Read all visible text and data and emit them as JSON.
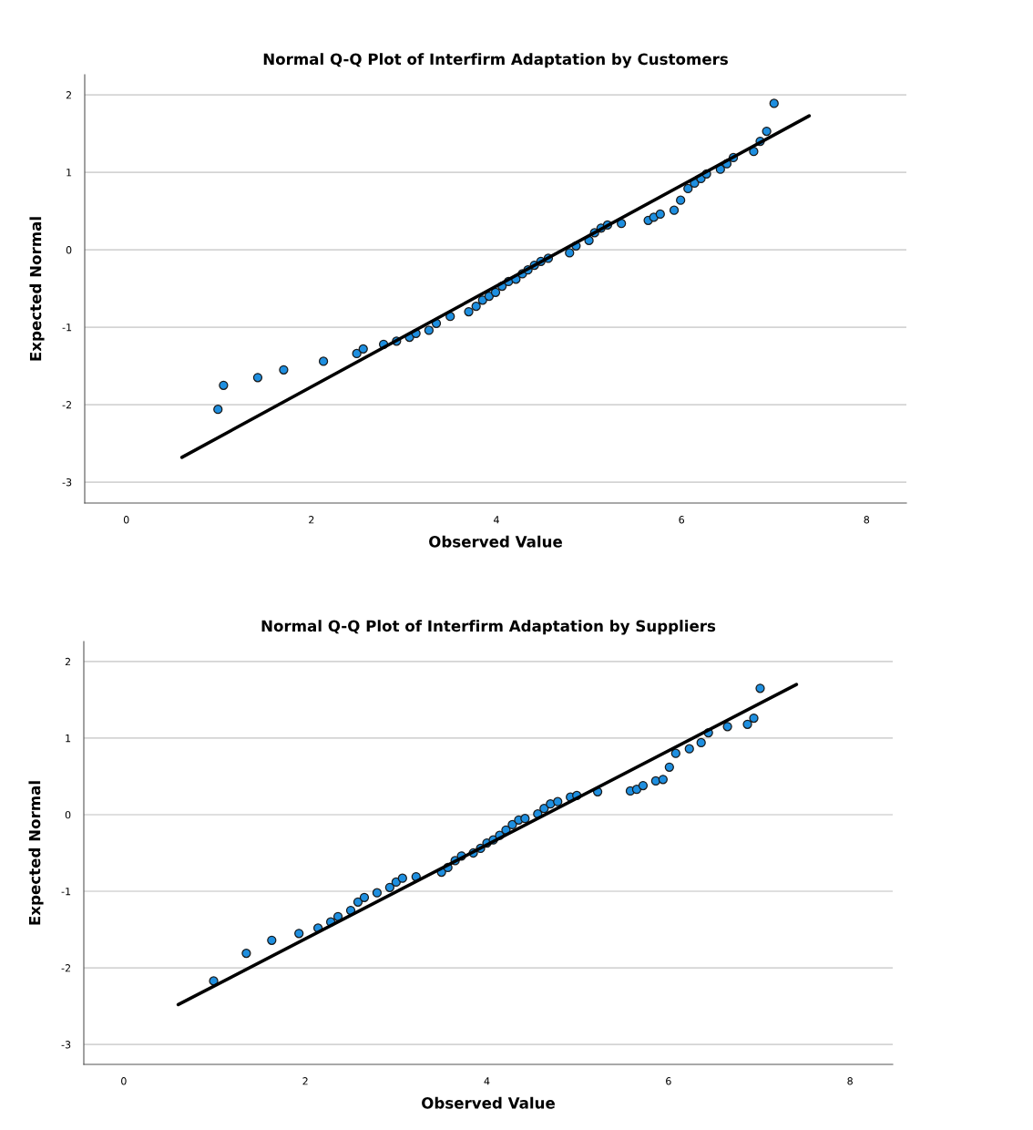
{
  "chart_data": [
    {
      "type": "scatter",
      "title": "Normal Q-Q Plot of Interfirm Adaptation by Customers",
      "xlabel": "Observed Value",
      "ylabel": "Expected Normal",
      "xlim": [
        -0.45,
        8.43
      ],
      "ylim": [
        -3.27,
        2.26
      ],
      "xticks": [
        0,
        2,
        4,
        6,
        8
      ],
      "yticks": [
        -3,
        -2,
        -1,
        0,
        1,
        2
      ],
      "grid": "y",
      "legend": false,
      "series": [
        {
          "marker": "circle",
          "color": "#1e8fe0",
          "x": [
            0.99,
            1.05,
            1.42,
            1.7,
            2.13,
            2.49,
            2.56,
            2.78,
            2.92,
            3.06,
            3.13,
            3.27,
            3.35,
            3.5,
            3.7,
            3.78,
            3.85,
            3.92,
            3.99,
            4.06,
            4.13,
            4.21,
            4.28,
            4.34,
            4.41,
            4.48,
            4.56,
            4.79,
            4.86,
            5.0,
            5.06,
            5.13,
            5.2,
            5.35,
            5.64,
            5.7,
            5.77,
            5.92,
            5.99,
            6.07,
            6.14,
            6.21,
            6.27,
            6.42,
            6.49,
            6.56,
            6.78,
            6.85,
            6.92,
            7.0
          ],
          "values": [
            -2.06,
            -1.75,
            -1.65,
            -1.55,
            -1.44,
            -1.34,
            -1.28,
            -1.22,
            -1.18,
            -1.13,
            -1.08,
            -1.04,
            -0.95,
            -0.86,
            -0.8,
            -0.73,
            -0.65,
            -0.6,
            -0.55,
            -0.47,
            -0.41,
            -0.38,
            -0.31,
            -0.26,
            -0.2,
            -0.15,
            -0.11,
            -0.04,
            0.05,
            0.12,
            0.22,
            0.28,
            0.32,
            0.34,
            0.38,
            0.42,
            0.46,
            0.51,
            0.64,
            0.79,
            0.86,
            0.92,
            0.98,
            1.04,
            1.11,
            1.19,
            1.27,
            1.4,
            1.53,
            1.89
          ]
        },
        {
          "type": "line",
          "color": "#000000",
          "x": [
            0.6,
            7.38
          ],
          "values": [
            -2.68,
            1.73
          ]
        }
      ]
    },
    {
      "type": "scatter",
      "title": "Normal Q-Q Plot of Interfirm Adaptation by Suppliers",
      "xlabel": "Observed Value",
      "ylabel": "Expected Normal",
      "xlim": [
        -0.44,
        8.47
      ],
      "ylim": [
        -3.26,
        2.26
      ],
      "xticks": [
        0,
        2,
        4,
        6,
        8
      ],
      "yticks": [
        -3,
        -2,
        -1,
        0,
        1,
        2
      ],
      "grid": "y",
      "legend": false,
      "series": [
        {
          "marker": "circle",
          "color": "#1e8fe0",
          "x": [
            0.99,
            1.35,
            1.63,
            1.93,
            2.14,
            2.28,
            2.36,
            2.5,
            2.58,
            2.65,
            2.79,
            2.93,
            3.0,
            3.07,
            3.22,
            3.5,
            3.57,
            3.65,
            3.72,
            3.85,
            3.93,
            4.0,
            4.07,
            4.14,
            4.21,
            4.28,
            4.35,
            4.42,
            4.56,
            4.63,
            4.7,
            4.78,
            4.92,
            4.99,
            5.22,
            5.58,
            5.65,
            5.72,
            5.86,
            5.94,
            6.01,
            6.08,
            6.23,
            6.36,
            6.44,
            6.65,
            6.87,
            6.94,
            7.01
          ],
          "values": [
            -2.17,
            -1.81,
            -1.64,
            -1.55,
            -1.48,
            -1.4,
            -1.33,
            -1.25,
            -1.14,
            -1.08,
            -1.02,
            -0.95,
            -0.88,
            -0.83,
            -0.81,
            -0.75,
            -0.69,
            -0.6,
            -0.54,
            -0.5,
            -0.44,
            -0.37,
            -0.33,
            -0.27,
            -0.2,
            -0.13,
            -0.07,
            -0.05,
            0.01,
            0.08,
            0.14,
            0.17,
            0.23,
            0.25,
            0.3,
            0.31,
            0.33,
            0.38,
            0.44,
            0.46,
            0.62,
            0.8,
            0.86,
            0.94,
            1.07,
            1.15,
            1.18,
            1.26,
            1.65
          ]
        },
        {
          "type": "line",
          "color": "#000000",
          "x": [
            0.6,
            7.41
          ],
          "values": [
            -2.48,
            1.7
          ]
        }
      ]
    }
  ]
}
